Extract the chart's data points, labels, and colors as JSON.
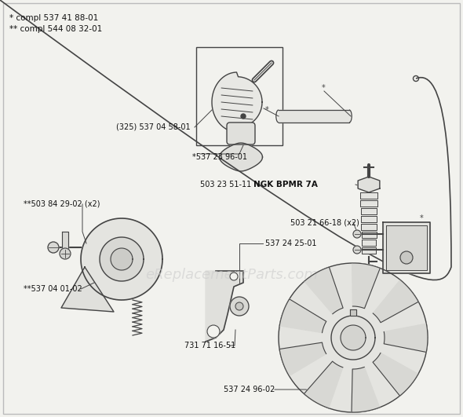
{
  "bg_color": "#f2f2ee",
  "border_color": "#bbbbbb",
  "line_color": "#444444",
  "text_color": "#111111",
  "watermark_text": "eReplacementParts.com",
  "watermark_color": "#cccccc",
  "watermark_fontsize": 13,
  "title_lines": [
    "* compl 537 41 88-01",
    "** compl 544 08 32-01"
  ],
  "title_fontsize": 7.5,
  "label_fontsize": 7.0
}
